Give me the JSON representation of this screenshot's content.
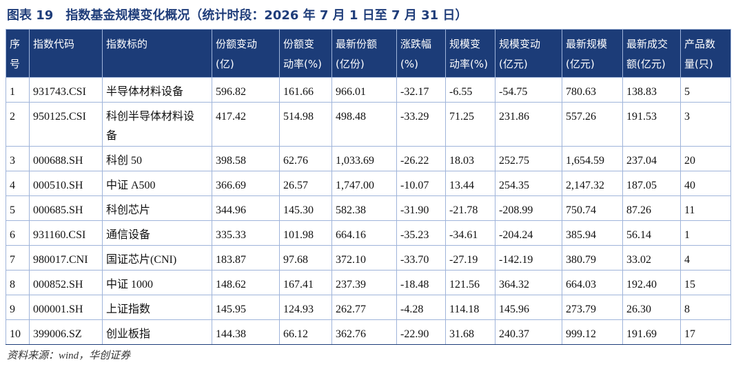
{
  "title": "图表 19　指数基金规模变化概况（统计时段：2026 年 7 月 1 日至 7 月 31 日）",
  "table": {
    "header": [
      [
        "序",
        "号"
      ],
      [
        "指数代码"
      ],
      [
        "指数标的"
      ],
      [
        "份额变动",
        "(亿)"
      ],
      [
        "份额变",
        "动率(%)"
      ],
      [
        "最新份额",
        "(亿份)"
      ],
      [
        "涨跌幅",
        "(%)"
      ],
      [
        "规模变",
        "动率(%)"
      ],
      [
        "规模变动",
        "(亿元)"
      ],
      [
        "最新规模",
        "(亿元)"
      ],
      [
        "最新成交",
        "额(亿元)"
      ],
      [
        "产品数",
        "量(只)"
      ]
    ],
    "rows": [
      [
        "1",
        "931743.CSI",
        "半导体材料设备",
        "596.82",
        "161.66",
        "966.01",
        "-32.17",
        "-6.55",
        "-54.75",
        "780.63",
        "138.83",
        "5"
      ],
      [
        "2",
        "950125.CSI",
        "科创半导体材料设备",
        "417.42",
        "514.98",
        "498.48",
        "-33.29",
        "71.25",
        "231.86",
        "557.26",
        "191.53",
        "3"
      ],
      [
        "3",
        "000688.SH",
        "科创 50",
        "398.58",
        "62.76",
        "1,033.69",
        "-26.22",
        "18.03",
        "252.75",
        "1,654.59",
        "237.04",
        "20"
      ],
      [
        "4",
        "000510.SH",
        "中证 A500",
        "366.69",
        "26.57",
        "1,747.00",
        "-10.07",
        "13.44",
        "254.35",
        "2,147.32",
        "187.05",
        "40"
      ],
      [
        "5",
        "000685.SH",
        "科创芯片",
        "344.96",
        "145.30",
        "582.38",
        "-31.90",
        "-21.78",
        "-208.99",
        "750.74",
        "87.26",
        "11"
      ],
      [
        "6",
        "931160.CSI",
        "通信设备",
        "335.33",
        "101.98",
        "664.16",
        "-35.23",
        "-34.61",
        "-204.24",
        "385.94",
        "56.14",
        "1"
      ],
      [
        "7",
        "980017.CNI",
        "国证芯片(CNI)",
        "183.87",
        "97.68",
        "372.10",
        "-33.70",
        "-27.19",
        "-142.19",
        "380.79",
        "33.02",
        "4"
      ],
      [
        "8",
        "000852.SH",
        "中证 1000",
        "148.62",
        "167.41",
        "237.39",
        "-18.48",
        "121.56",
        "364.32",
        "664.03",
        "192.40",
        "15"
      ],
      [
        "9",
        "000001.SH",
        "上证指数",
        "145.95",
        "124.93",
        "262.77",
        "-4.28",
        "114.18",
        "145.96",
        "273.79",
        "26.30",
        "8"
      ],
      [
        "10",
        "399006.SZ",
        "创业板指",
        "144.38",
        "66.12",
        "362.76",
        "-22.90",
        "31.68",
        "240.37",
        "999.12",
        "191.69",
        "17"
      ]
    ]
  },
  "source": "资料来源：wind，华创证券"
}
